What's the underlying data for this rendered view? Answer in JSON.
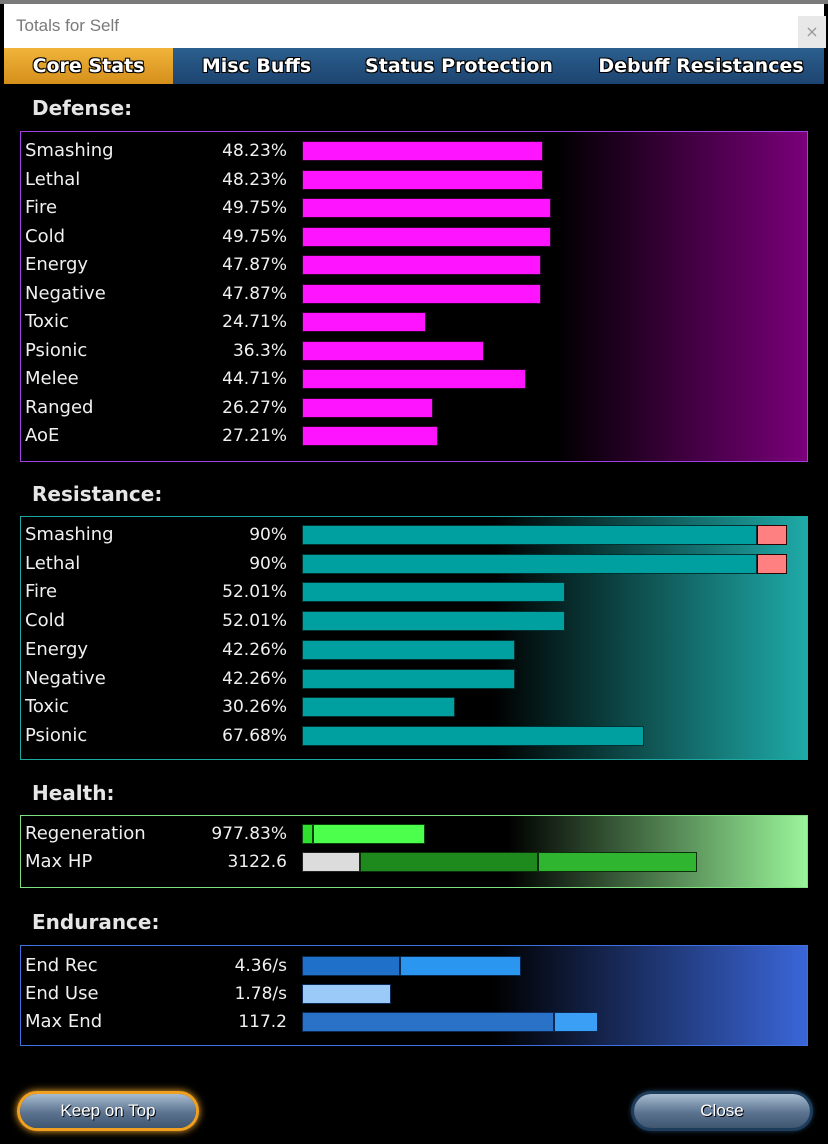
{
  "window": {
    "title": "Totals for Self",
    "close_glyph": "×"
  },
  "tabs": [
    {
      "label": "Core Stats",
      "active": true
    },
    {
      "label": "Misc Buffs",
      "active": false
    },
    {
      "label": "Status Protection",
      "active": false
    },
    {
      "label": "Debuff Resistances",
      "active": false
    }
  ],
  "defense": {
    "title": "Defense:",
    "rows": [
      {
        "label": "Smashing",
        "value": "48.23%",
        "level": 0.4823
      },
      {
        "label": "Lethal",
        "value": "48.23%",
        "level": 0.4823
      },
      {
        "label": "Fire",
        "value": "49.75%",
        "level": 0.4975
      },
      {
        "label": "Cold",
        "value": "49.75%",
        "level": 0.4975
      },
      {
        "label": "Energy",
        "value": "47.87%",
        "level": 0.4787
      },
      {
        "label": "Negative",
        "value": "47.87%",
        "level": 0.4787
      },
      {
        "label": "Toxic",
        "value": "24.71%",
        "level": 0.2471
      },
      {
        "label": "Psionic",
        "value": "36.3%",
        "level": 0.363
      },
      {
        "label": "Melee",
        "value": "44.71%",
        "level": 0.4471
      },
      {
        "label": "Ranged",
        "value": "26.27%",
        "level": 0.2627
      },
      {
        "label": "AoE",
        "value": "27.21%",
        "level": 0.2721
      }
    ]
  },
  "resistance": {
    "title": "Resistance:",
    "rows": [
      {
        "label": "Smashing",
        "value": "90%",
        "level": 0.9
      },
      {
        "label": "Lethal",
        "value": "90%",
        "level": 0.9
      },
      {
        "label": "Fire",
        "value": "52.01%",
        "level": 0.5201
      },
      {
        "label": "Cold",
        "value": "52.01%",
        "level": 0.5201
      },
      {
        "label": "Energy",
        "value": "42.26%",
        "level": 0.4226
      },
      {
        "label": "Negative",
        "value": "42.26%",
        "level": 0.4226
      },
      {
        "label": "Toxic",
        "value": "30.26%",
        "level": 0.3026
      },
      {
        "label": "Psionic",
        "value": "67.68%",
        "level": 0.6768
      }
    ]
  },
  "health": {
    "title": "Health:",
    "rows": [
      {
        "label": "Regeneration",
        "value": "977.83%"
      },
      {
        "label": "Max HP",
        "value": "3122.6"
      }
    ]
  },
  "endurance": {
    "title": "Endurance:",
    "rows": [
      {
        "label": "End Rec",
        "value": "4.36/s"
      },
      {
        "label": "End Use",
        "value": "1.78/s"
      },
      {
        "label": "Max End",
        "value": "117.2"
      }
    ]
  },
  "colors": {
    "defense_bar": "#ff14ff",
    "resistance_bar": "#00a0a0",
    "resistance_cap": "#ff8080",
    "health_green": "#2fd42f",
    "endurance_blue": "#2a7fd8",
    "active_tab": "#f1b43a"
  },
  "buttons": {
    "keep_on_top": "Keep on Top",
    "close": "Close"
  }
}
